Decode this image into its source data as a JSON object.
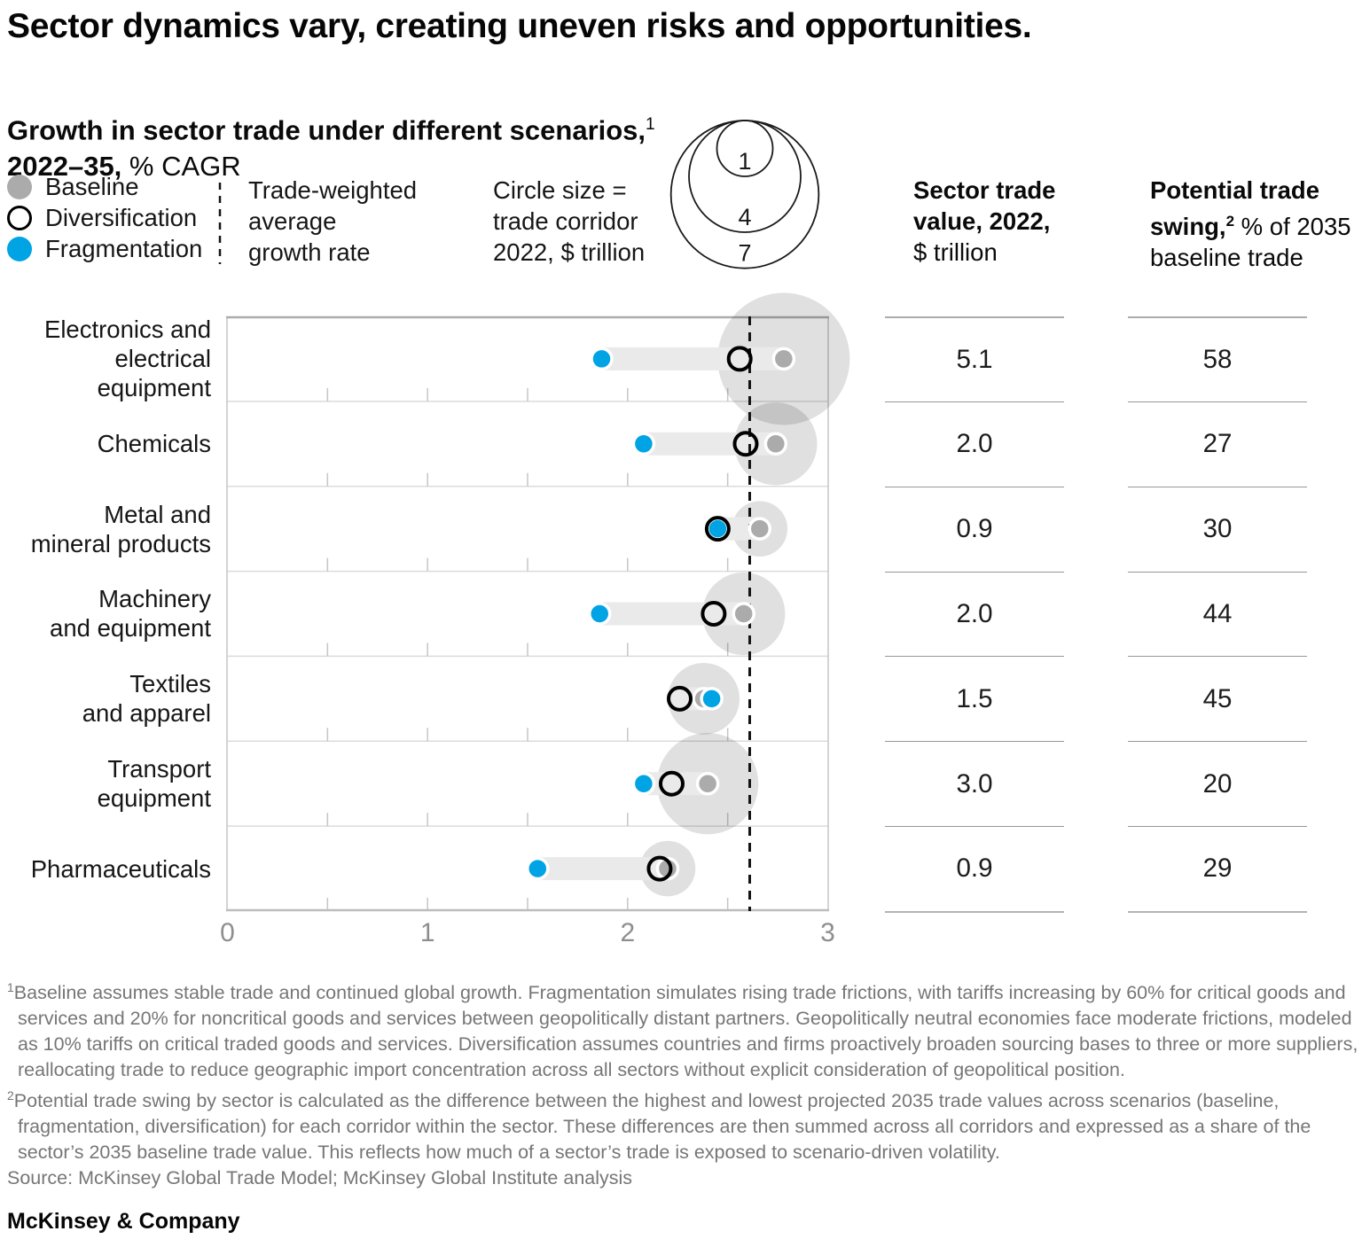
{
  "page": {
    "title": "Sector dynamics vary, creating uneven risks and opportunities.",
    "footer_brand": "McKinsey & Company"
  },
  "subtitle": {
    "line1_bold": "Growth in sector trade under different scenarios,",
    "line1_sup": "1",
    "line2_bold": "2022–35,",
    "line2_regular": " % CAGR"
  },
  "legend": {
    "scenarios": [
      {
        "id": "baseline",
        "label": "Baseline"
      },
      {
        "id": "diversification",
        "label": "Diversification"
      },
      {
        "id": "fragmentation",
        "label": "Fragmentation"
      }
    ],
    "average_line": {
      "lines": [
        "Trade-weighted",
        "average",
        "growth rate"
      ]
    },
    "size_legend": {
      "lines": [
        "Circle size =",
        "trade corridor",
        "2022, $ trillion"
      ],
      "values": [
        "1",
        "4",
        "7"
      ]
    }
  },
  "columns": {
    "trade_value": {
      "line1": "Sector trade",
      "line2": "value, 2022,",
      "line3": "$ trillion"
    },
    "trade_swing": {
      "line1": "Potential trade",
      "line2_bold": "swing,",
      "line2_sup": "2",
      "line2_regular": " % of 2035",
      "line3": "baseline trade"
    }
  },
  "chart_data": {
    "type": "scatter",
    "title": "Growth in sector trade under different scenarios, 2022–35, % CAGR",
    "x_axis": {
      "min": 0,
      "max": 3,
      "tick_labels": [
        "0",
        "1",
        "2",
        "3"
      ],
      "minor_tick_step": 0.5,
      "grid": false
    },
    "average_growth_rate": 2.61,
    "bubble_size_note": "Circle size = trade corridor 2022, $ trillion; circle centered on baseline value",
    "legend_position": "top-left",
    "rows": [
      {
        "sector": "Electronics and electrical equipment",
        "label_lines": [
          "Electronics and",
          "electrical equipment"
        ],
        "baseline": 2.78,
        "diversification": 2.56,
        "fragmentation": 1.87,
        "trade_value_2022": "5.1",
        "potential_trade_swing_pct": "58"
      },
      {
        "sector": "Chemicals",
        "label_lines": [
          "Chemicals"
        ],
        "baseline": 2.74,
        "diversification": 2.59,
        "fragmentation": 2.08,
        "trade_value_2022": "2.0",
        "potential_trade_swing_pct": "27"
      },
      {
        "sector": "Metal and mineral products",
        "label_lines": [
          "Metal and",
          "mineral products"
        ],
        "baseline": 2.66,
        "diversification": 2.45,
        "fragmentation": 2.45,
        "trade_value_2022": "0.9",
        "potential_trade_swing_pct": "30"
      },
      {
        "sector": "Machinery and equipment",
        "label_lines": [
          "Machinery",
          "and equipment"
        ],
        "baseline": 2.58,
        "diversification": 2.43,
        "fragmentation": 1.86,
        "trade_value_2022": "2.0",
        "potential_trade_swing_pct": "44"
      },
      {
        "sector": "Textiles and apparel",
        "label_lines": [
          "Textiles",
          "and apparel"
        ],
        "baseline": 2.38,
        "diversification": 2.26,
        "fragmentation": 2.42,
        "trade_value_2022": "1.5",
        "potential_trade_swing_pct": "45"
      },
      {
        "sector": "Transport equipment",
        "label_lines": [
          "Transport",
          "equipment"
        ],
        "baseline": 2.4,
        "diversification": 2.22,
        "fragmentation": 2.08,
        "trade_value_2022": "3.0",
        "potential_trade_swing_pct": "20"
      },
      {
        "sector": "Pharmaceuticals",
        "label_lines": [
          "Pharmaceuticals"
        ],
        "baseline": 2.2,
        "diversification": 2.16,
        "fragmentation": 1.55,
        "trade_value_2022": "0.9",
        "potential_trade_swing_pct": "29"
      }
    ],
    "colors": {
      "baseline": "#ABABAB",
      "diversification": "#000000",
      "fragmentation": "#00A4E4",
      "corridor_circle": "rgba(0,0,0,0.12)",
      "range_bar": "#EAEAEA",
      "average_line": "#141414"
    }
  },
  "footnotes": [
    {
      "sup": "1",
      "text": "Baseline assumes stable trade and continued global growth. Fragmentation simulates rising trade frictions, with tariffs increasing by 60% for critical goods and services and 20% for noncritical goods and services between geopolitically distant partners. Geopolitically neutral economies face moderate frictions, modeled as 10% tariffs on critical traded goods and services. Diversification assumes countries and firms proactively broaden sourcing bases to three or more suppliers, reallocating trade to reduce geographic import concentration across all sectors without explicit consideration of geopolitical position."
    },
    {
      "sup": "2",
      "text": "Potential trade swing by sector is calculated as the difference between the highest and lowest projected 2035 trade values across scenarios (baseline, fragmentation, diversification) for each corridor within the sector. These differences are then summed across all corridors and expressed as a share of the sector’s 2035 baseline trade value. This reflects how much of a sector’s trade is exposed to scenario-driven volatility."
    },
    {
      "sup": "",
      "text": "Source: McKinsey Global Trade Model; McKinsey Global Institute analysis"
    }
  ]
}
